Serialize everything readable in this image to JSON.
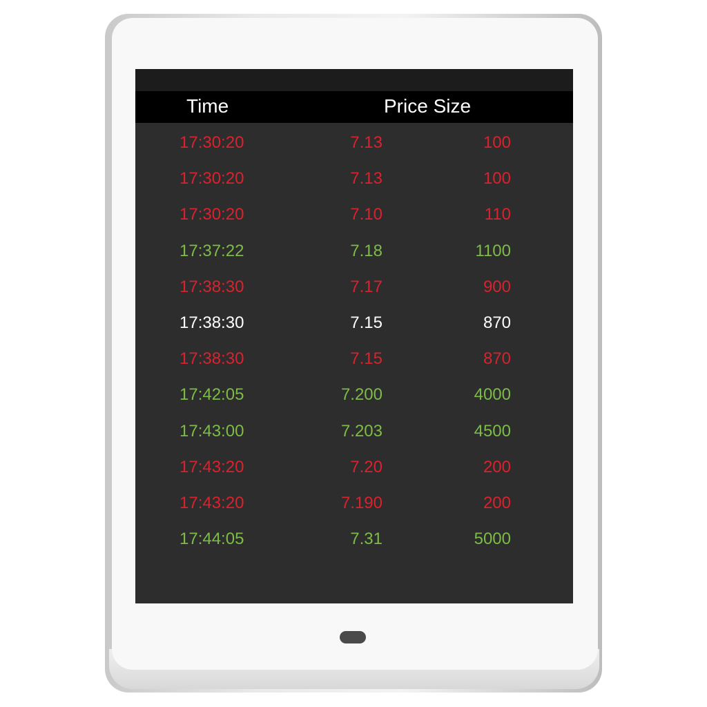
{
  "header": {
    "time_label": "Time",
    "price_size_label": "Price Size"
  },
  "colors": {
    "down": "#d8232f",
    "up": "#7cbc47",
    "neutral": "#ffffff"
  },
  "trades": [
    {
      "time": "17:30:20",
      "price": "7.13",
      "size": "100",
      "direction": "down"
    },
    {
      "time": "17:30:20",
      "price": "7.13",
      "size": "100",
      "direction": "down"
    },
    {
      "time": "17:30:20",
      "price": "7.10",
      "size": "110",
      "direction": "down"
    },
    {
      "time": "17:37:22",
      "price": "7.18",
      "size": "1100",
      "direction": "up"
    },
    {
      "time": "17:38:30",
      "price": "7.17",
      "size": "900",
      "direction": "down"
    },
    {
      "time": "17:38:30",
      "price": "7.15",
      "size": "870",
      "direction": "neutral"
    },
    {
      "time": "17:38:30",
      "price": "7.15",
      "size": "870",
      "direction": "down"
    },
    {
      "time": "17:42:05",
      "price": "7.200",
      "size": "4000",
      "direction": "up"
    },
    {
      "time": "17:43:00",
      "price": "7.203",
      "size": "4500",
      "direction": "up"
    },
    {
      "time": "17:43:20",
      "price": "7.20",
      "size": "200",
      "direction": "down"
    },
    {
      "time": "17:43:20",
      "price": "7.190",
      "size": "200",
      "direction": "down"
    },
    {
      "time": "17:44:05",
      "price": "7.31",
      "size": "5000",
      "direction": "up"
    }
  ]
}
